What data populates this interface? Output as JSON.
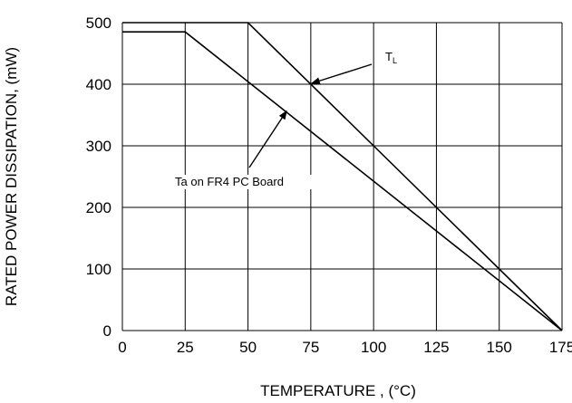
{
  "chart_data": {
    "type": "line",
    "title": "",
    "xlabel": "TEMPERATURE , (°C)",
    "ylabel": "RATED POWER DISSIPATION, (mW)",
    "xlim": [
      0,
      175
    ],
    "ylim": [
      0,
      500
    ],
    "xticks": [
      0,
      25,
      50,
      75,
      100,
      125,
      150,
      175
    ],
    "yticks": [
      0,
      100,
      200,
      300,
      400,
      500
    ],
    "xtick_labels": [
      "0",
      "25",
      "50",
      "75",
      "100",
      "125",
      "150",
      "175"
    ],
    "ytick_labels": [
      "0",
      "100",
      "200",
      "300",
      "400",
      "500"
    ],
    "grid": true,
    "legend": "none",
    "series": [
      {
        "name": "T",
        "subscript": "L",
        "x": [
          0,
          50,
          175
        ],
        "y": [
          500,
          500,
          0
        ]
      },
      {
        "name": "Ta on FR4 PC Board",
        "x": [
          0,
          25,
          175
        ],
        "y": [
          485,
          485,
          0
        ]
      }
    ],
    "annotations": [
      {
        "text": "T",
        "subscript": "L",
        "target_series": 0,
        "point": [
          75,
          400
        ]
      },
      {
        "text": "Ta on FR4 PC Board",
        "target_series": 1,
        "point": [
          65,
          355
        ]
      }
    ],
    "colors": {
      "line": "#000000",
      "grid": "#000000",
      "background": "#ffffff"
    }
  }
}
